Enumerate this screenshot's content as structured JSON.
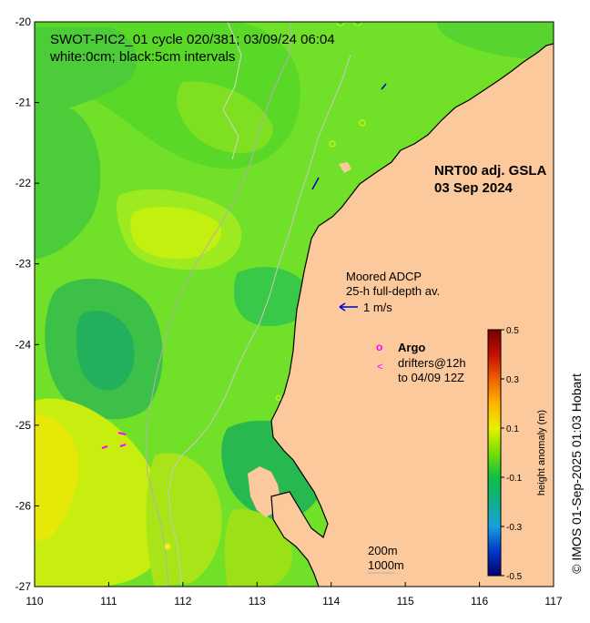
{
  "map": {
    "title_line1": "SWOT-PIC2_01 cycle 020/381; 03/09/24 06:04",
    "title_line2": "white:0cm; black:5cm intervals",
    "product_line1": "NRT00 adj. GSLA",
    "product_line2": "03 Sep 2024",
    "adcp_line1": "Moored ADCP",
    "adcp_line2": "25-h full-depth av.",
    "adcp_scale": "1 m/s",
    "argo_label": "Argo",
    "argo_symbol": "o",
    "drifter_symbol": "<",
    "drifters_line1": "drifters@12h",
    "drifters_line2": "to 04/09 12Z",
    "contour_label_200": "200m",
    "contour_label_1000": "1000m",
    "credit": "© IMOS 01-Sep-2025 01:03 Hobart",
    "x_axis": {
      "ticks": [
        "110",
        "111",
        "112",
        "113",
        "114",
        "115",
        "116",
        "117"
      ],
      "range": [
        110,
        117
      ]
    },
    "y_axis": {
      "ticks": [
        "-20",
        "-21",
        "-22",
        "-23",
        "-24",
        "-25",
        "-26",
        "-27"
      ],
      "range": [
        -27,
        -20
      ]
    },
    "colorbar": {
      "label": "height anomaly (m)",
      "ticks": [
        "0.5",
        "0.3",
        "0.1",
        "-0.1",
        "-0.3",
        "-0.5"
      ],
      "range": [
        -0.5,
        0.5
      ],
      "colors": [
        "#00006e",
        "#0038c8",
        "#18a0e0",
        "#10b08a",
        "#10c040",
        "#78e000",
        "#e8f000",
        "#ffb400",
        "#f06000",
        "#c01000",
        "#780000"
      ]
    },
    "colors": {
      "land": "#fbc99b",
      "ocean_base": "#70e028",
      "argo": "#ff00ff",
      "adcp_arrow": "#0000cc",
      "isobath": "#b8b8b8"
    }
  }
}
